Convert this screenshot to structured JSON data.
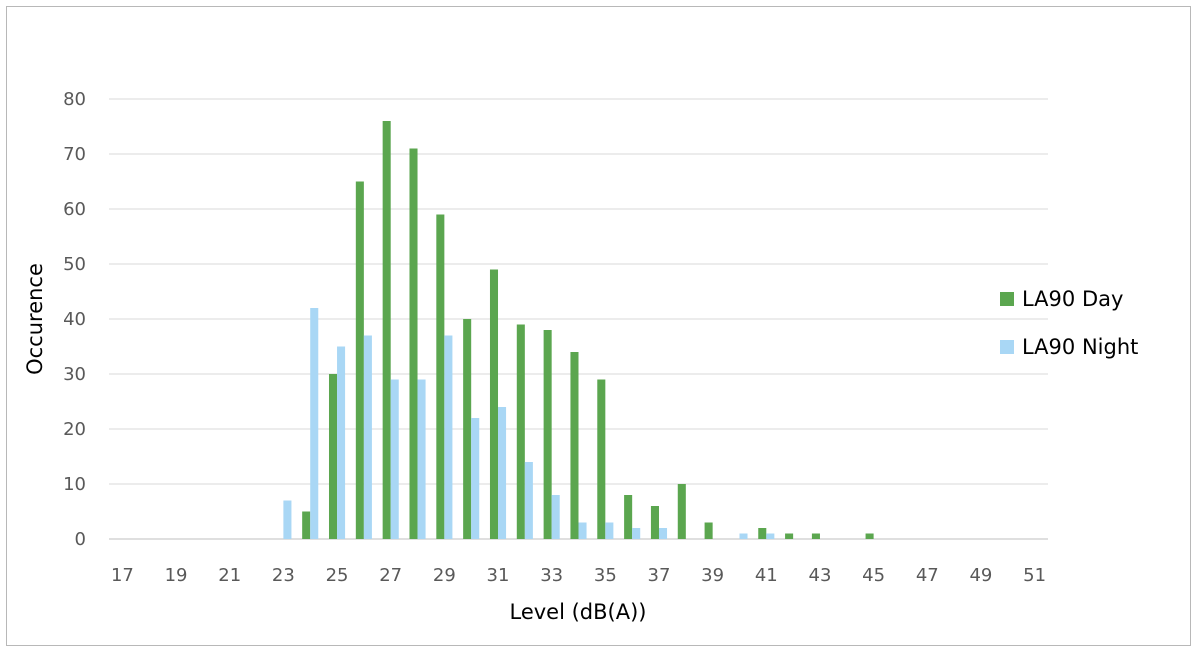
{
  "chart_data": {
    "type": "bar",
    "title": "",
    "xlabel": "Level (dB(A))",
    "ylabel": "Occurence",
    "ylim": [
      0,
      80
    ],
    "yticks": [
      0,
      10,
      20,
      30,
      40,
      50,
      60,
      70,
      80
    ],
    "grid": true,
    "legend_position": "right",
    "x": [
      17,
      18,
      19,
      20,
      21,
      22,
      23,
      24,
      25,
      26,
      27,
      28,
      29,
      30,
      31,
      32,
      33,
      34,
      35,
      36,
      37,
      38,
      39,
      40,
      41,
      42,
      43,
      44,
      45,
      46,
      47,
      48,
      49,
      50,
      51
    ],
    "x_tick_labels": [
      "17",
      "19",
      "21",
      "23",
      "25",
      "27",
      "29",
      "31",
      "33",
      "35",
      "37",
      "39",
      "41",
      "43",
      "45",
      "47",
      "49",
      "51"
    ],
    "series": [
      {
        "name": "LA90 Day",
        "color": "#5ba64f",
        "values": [
          0,
          0,
          0,
          0,
          0,
          0,
          0,
          5,
          30,
          65,
          76,
          71,
          59,
          40,
          49,
          39,
          38,
          34,
          29,
          8,
          6,
          10,
          3,
          0,
          2,
          1,
          1,
          0,
          1,
          0,
          0,
          0,
          0,
          0,
          0
        ]
      },
      {
        "name": "LA90 Night",
        "color": "#a9d7f5",
        "values": [
          0,
          0,
          0,
          0,
          0,
          0,
          7,
          42,
          35,
          37,
          29,
          29,
          37,
          22,
          24,
          14,
          8,
          3,
          3,
          2,
          2,
          0,
          0,
          1,
          1,
          0,
          0,
          0,
          0,
          0,
          0,
          0,
          0,
          0,
          0
        ]
      }
    ]
  }
}
